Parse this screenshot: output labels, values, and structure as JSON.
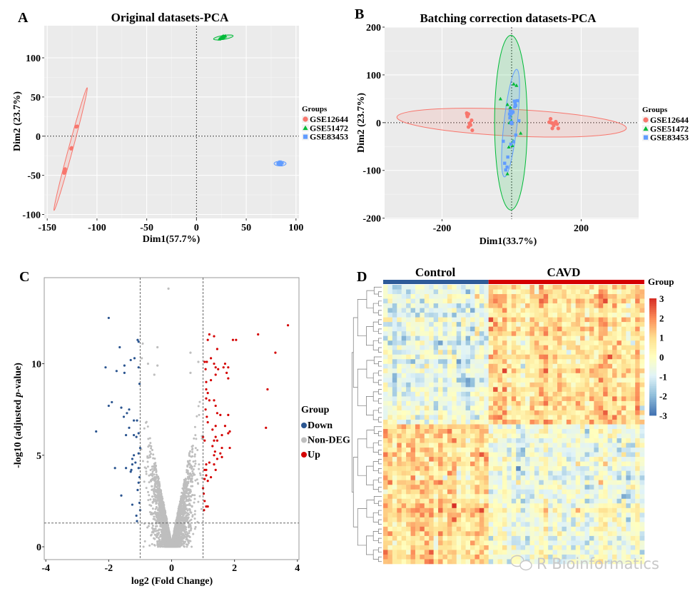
{
  "colors": {
    "GSE12644": "#F8766D",
    "GSE51472": "#00BA38",
    "GSE83453": "#619CFF",
    "down": "#2B5590",
    "nondeg": "#BEBEBE",
    "up": "#D40000",
    "control_bar": "#2E5B98",
    "cavd_bar": "#D40000",
    "panel_bg": "#EBEBEB"
  },
  "chart_data": [
    {
      "panel": "A",
      "type": "scatter",
      "title": "Original datasets-PCA",
      "xlabel": "Dim1(57.7%)",
      "ylabel": "Dim2 (23.7%)",
      "xlim": [
        -153,
        103
      ],
      "ylim": [
        -105,
        141
      ],
      "xticks": [
        -150,
        -100,
        -50,
        0,
        50,
        100
      ],
      "yticks": [
        -100,
        -50,
        0,
        50,
        100
      ],
      "grid": true,
      "legend": {
        "title": "Groups",
        "position": "right",
        "entries": [
          "GSE12644",
          "GSE51472",
          "GSE83453"
        ]
      },
      "series": [
        {
          "name": "GSE12644",
          "marker": "circle",
          "points": [
            [
              -133,
              -47
            ],
            [
              -132.5,
              -45
            ],
            [
              -132,
              -42
            ],
            [
              -126,
              -16
            ],
            [
              -125.5,
              -15
            ],
            [
              -121,
              12
            ],
            [
              -120,
              12.5
            ]
          ],
          "ellipse": {
            "cx": -126.5,
            "cy": -16.5,
            "a": 80,
            "b": 2.2,
            "angle_deg": 78
          }
        },
        {
          "name": "GSE51472",
          "marker": "triangle",
          "points": [
            [
              24,
              125
            ],
            [
              25,
              126
            ],
            [
              26,
              127
            ],
            [
              27,
              126
            ],
            [
              28,
              127
            ],
            [
              26,
              125
            ],
            [
              29,
              128
            ],
            [
              23,
              124
            ],
            [
              27,
              128
            ],
            [
              25,
              125.5
            ]
          ],
          "ellipse": {
            "cx": 27,
            "cy": 126,
            "a": 10,
            "b": 2.5,
            "angle_deg": 12
          }
        },
        {
          "name": "GSE83453",
          "marker": "square",
          "points": [
            [
              82,
              -35
            ],
            [
              83,
              -34
            ],
            [
              84,
              -36
            ],
            [
              85,
              -35
            ],
            [
              86,
              -34
            ],
            [
              84,
              -33
            ],
            [
              83,
              -36
            ],
            [
              85,
              -36.5
            ]
          ],
          "ellipse": {
            "cx": 84,
            "cy": -35,
            "a": 6,
            "b": 3,
            "angle_deg": 0
          }
        }
      ]
    },
    {
      "panel": "B",
      "type": "scatter",
      "title": "Batching correction datasets-PCA",
      "xlabel": "Dim1(33.7%)",
      "ylabel": "Dim2 (23.7%)",
      "xlim": [
        -365,
        365
      ],
      "ylim": [
        -202,
        200
      ],
      "xticks": [
        -200,
        200
      ],
      "yticks": [
        -200,
        -100,
        0,
        100,
        200
      ],
      "grid": true,
      "legend": {
        "title": "Groups",
        "position": "right",
        "entries": [
          "GSE12644",
          "GSE51472",
          "GSE83453"
        ]
      },
      "series": [
        {
          "name": "GSE12644",
          "marker": "circle",
          "points": [
            [
              -129,
              20
            ],
            [
              -128,
              17
            ],
            [
              -127,
              13
            ],
            [
              -124,
              18
            ],
            [
              -115,
              5
            ],
            [
              -121,
              -2
            ],
            [
              -118,
              -5
            ],
            [
              -124,
              -9
            ],
            [
              -113,
              -16
            ],
            [
              -120,
              -1
            ],
            [
              112,
              8
            ],
            [
              108,
              1
            ],
            [
              113,
              0
            ],
            [
              117,
              -1
            ],
            [
              121,
              -6
            ],
            [
              127,
              2
            ],
            [
              131,
              -3
            ],
            [
              117,
              -12
            ],
            [
              134,
              -12
            ],
            [
              124,
              -1
            ]
          ],
          "ellipse": {
            "cx": 0,
            "cy": 0,
            "a": 330,
            "b": 28,
            "angle_deg": -2
          }
        },
        {
          "name": "GSE51472",
          "marker": "triangle",
          "points": [
            [
              -32,
              50
            ],
            [
              -12,
              38
            ],
            [
              -4,
              32
            ],
            [
              6,
              81
            ],
            [
              14,
              78
            ],
            [
              -3,
              14
            ],
            [
              -1,
              4
            ],
            [
              -6,
              0
            ],
            [
              26,
              -22
            ],
            [
              4,
              -38
            ],
            [
              -8,
              -51
            ],
            [
              2,
              -48
            ],
            [
              -12,
              -107
            ],
            [
              0,
              -45
            ]
          ],
          "ellipse": {
            "cx": -2,
            "cy": 0,
            "a": 183,
            "b": 47,
            "angle_deg": 90
          }
        },
        {
          "name": "GSE83453",
          "marker": "square",
          "points": [
            [
              8,
              45
            ],
            [
              16,
              46
            ],
            [
              10,
              40
            ],
            [
              12,
              36
            ],
            [
              9,
              33
            ],
            [
              -4,
              25
            ],
            [
              0,
              20
            ],
            [
              4,
              22
            ],
            [
              -6,
              18
            ],
            [
              -3,
              17
            ],
            [
              2,
              23
            ],
            [
              -5,
              10
            ],
            [
              0,
              1
            ],
            [
              -2,
              -1
            ],
            [
              1,
              -2
            ],
            [
              21,
              4
            ],
            [
              12,
              -26
            ],
            [
              6,
              -40
            ],
            [
              -2,
              -45
            ],
            [
              -24,
              -39
            ],
            [
              -11,
              -72
            ],
            [
              -20,
              -85
            ],
            [
              -13,
              -93
            ],
            [
              -17,
              -99
            ]
          ],
          "ellipse": {
            "cx": -3,
            "cy": -1,
            "a": 114,
            "b": 19,
            "angle_deg": 81
          }
        }
      ]
    },
    {
      "panel": "C",
      "type": "scatter",
      "title": "",
      "xlabel": "log2 (Fold Change)",
      "ylabel_prefix": "-log10 (adjusted ",
      "ylabel_italic": "p",
      "ylabel_suffix": "-value)",
      "xlim": [
        -4.05,
        4.05
      ],
      "ylim": [
        -0.7,
        14.7
      ],
      "xticks": [
        -4,
        -2,
        0,
        2,
        4
      ],
      "yticks": [
        0,
        5,
        10
      ],
      "grid": false,
      "thresholds": {
        "log2fc": [
          -1,
          1
        ],
        "neg_log10_padj": 1.3
      },
      "legend": {
        "title": "Group",
        "position": "right",
        "entries": [
          "Down",
          "Non-DEG",
          "Up"
        ]
      },
      "series": [
        {
          "name": "Down",
          "points": [
            [
              -2.0,
              12.5
            ],
            [
              -1.65,
              10.9
            ],
            [
              -1.08,
              11.3
            ],
            [
              -1.05,
              11.2
            ],
            [
              -1.3,
              10.2
            ],
            [
              -1.18,
              10.3
            ],
            [
              -2.1,
              9.8
            ],
            [
              -1.75,
              9.6
            ],
            [
              -1.5,
              9.9
            ],
            [
              -1.5,
              9.5
            ],
            [
              -1.05,
              9.8
            ],
            [
              -1.02,
              8.9
            ],
            [
              -1.9,
              7.9
            ],
            [
              -2.0,
              7.7
            ],
            [
              -1.6,
              7.6
            ],
            [
              -1.35,
              7.5
            ],
            [
              -1.42,
              7.3
            ],
            [
              -1.52,
              7.1
            ],
            [
              -1.2,
              6.9
            ],
            [
              -1.1,
              6.9
            ],
            [
              -1.35,
              6.5
            ],
            [
              -2.4,
              6.3
            ],
            [
              -1.45,
              6.1
            ],
            [
              -1.2,
              6.1
            ],
            [
              -1.12,
              6.0
            ],
            [
              -1.05,
              6.2
            ],
            [
              -1.0,
              5.4
            ],
            [
              -1.2,
              5.0
            ],
            [
              -1.25,
              4.8
            ],
            [
              -1.05,
              5.1
            ],
            [
              -1.25,
              4.5
            ],
            [
              -1.15,
              4.6
            ],
            [
              -1.8,
              4.3
            ],
            [
              -1.45,
              4.3
            ],
            [
              -1.3,
              4.1
            ],
            [
              -1.28,
              4.2
            ],
            [
              -1.05,
              4.3
            ],
            [
              -1.02,
              3.8
            ],
            [
              -1.05,
              3.5
            ],
            [
              -1.08,
              3.1
            ],
            [
              -1.6,
              2.8
            ],
            [
              -1.25,
              2.3
            ],
            [
              -1.02,
              2.4
            ],
            [
              -1.12,
              1.7
            ],
            [
              -1.1,
              1.4
            ],
            [
              -1.0,
              2.0
            ]
          ]
        },
        {
          "name": "Non-DEG",
          "points": [
            [
              -0.45,
              10.9
            ],
            [
              -0.92,
              11.1
            ],
            [
              -0.95,
              10.3
            ],
            [
              -0.75,
              10.0
            ],
            [
              -0.55,
              9.4
            ],
            [
              -0.45,
              9.9
            ],
            [
              0.6,
              10.6
            ],
            [
              0.85,
              10.1
            ],
            [
              0.6,
              9.5
            ],
            [
              -0.1,
              14.1
            ]
          ]
        },
        {
          "name": "Up",
          "points": [
            [
              3.7,
              12.1
            ],
            [
              2.75,
              11.6
            ],
            [
              1.95,
              11.3
            ],
            [
              2.05,
              11.3
            ],
            [
              1.2,
              11.6
            ],
            [
              1.35,
              11.5
            ],
            [
              1.15,
              11.3
            ],
            [
              1.45,
              10.8
            ],
            [
              3.3,
              10.6
            ],
            [
              1.25,
              10.3
            ],
            [
              1.05,
              10.1
            ],
            [
              1.12,
              10.1
            ],
            [
              1.35,
              10.0
            ],
            [
              1.7,
              10.0
            ],
            [
              1.65,
              9.8
            ],
            [
              1.8,
              9.8
            ],
            [
              1.4,
              9.8
            ],
            [
              1.48,
              9.7
            ],
            [
              1.08,
              9.7
            ],
            [
              1.75,
              9.5
            ],
            [
              1.4,
              9.4
            ],
            [
              1.8,
              9.2
            ],
            [
              1.25,
              9.1
            ],
            [
              1.1,
              9.0
            ],
            [
              3.05,
              8.6
            ],
            [
              1.1,
              8.6
            ],
            [
              1.15,
              8.4
            ],
            [
              1.1,
              8.1
            ],
            [
              1.2,
              8.0
            ],
            [
              1.35,
              8.0
            ],
            [
              1.4,
              7.7
            ],
            [
              1.08,
              7.5
            ],
            [
              1.45,
              7.3
            ],
            [
              1.55,
              7.2
            ],
            [
              1.8,
              7.2
            ],
            [
              1.12,
              7.1
            ],
            [
              1.15,
              6.8
            ],
            [
              1.4,
              6.6
            ],
            [
              1.7,
              6.6
            ],
            [
              3.0,
              6.5
            ],
            [
              1.3,
              6.4
            ],
            [
              1.85,
              6.3
            ],
            [
              1.8,
              6.2
            ],
            [
              1.6,
              6.1
            ],
            [
              1.4,
              6.0
            ],
            [
              1.35,
              5.8
            ],
            [
              1.45,
              5.8
            ],
            [
              1.0,
              6.0
            ],
            [
              1.05,
              5.8
            ],
            [
              1.3,
              5.5
            ],
            [
              1.6,
              5.4
            ],
            [
              1.85,
              5.4
            ],
            [
              1.38,
              5.2
            ],
            [
              1.55,
              5.1
            ],
            [
              1.35,
              5.0
            ],
            [
              1.6,
              4.9
            ],
            [
              1.45,
              4.8
            ],
            [
              1.2,
              4.6
            ],
            [
              1.1,
              4.5
            ],
            [
              1.35,
              4.5
            ],
            [
              1.05,
              4.2
            ],
            [
              1.1,
              4.2
            ],
            [
              1.4,
              4.2
            ],
            [
              1.1,
              3.9
            ],
            [
              1.25,
              3.8
            ],
            [
              1.05,
              3.7
            ],
            [
              1.15,
              3.6
            ],
            [
              1.0,
              3.2
            ],
            [
              1.02,
              2.9
            ],
            [
              1.05,
              2.5
            ],
            [
              1.1,
              2.2
            ],
            [
              1.15,
              2.2
            ],
            [
              1.03,
              2.0
            ]
          ]
        }
      ]
    },
    {
      "panel": "D",
      "type": "heatmap",
      "title": "",
      "column_groups": [
        {
          "name": "Control",
          "n_columns": 23
        },
        {
          "name": "CAVD",
          "n_columns": 34
        }
      ],
      "n_rows": 60,
      "row_clusters": [
        {
          "rows": 30,
          "pattern": "low in Control, high in CAVD"
        },
        {
          "rows": 30,
          "pattern": "high in Control, low in CAVD"
        }
      ],
      "annotation_label": "Group",
      "color_scale": {
        "min": -3,
        "max": 3,
        "ticks": [
          3,
          2,
          1,
          0,
          -1,
          -2,
          -3
        ],
        "colors": [
          "#4575B4",
          "#91BFDB",
          "#E0F3F8",
          "#FFFFBF",
          "#FEE090",
          "#FC8D59",
          "#D73027"
        ]
      },
      "row_dendrogram": true
    }
  ],
  "panel_labels": [
    "A",
    "B",
    "C",
    "D"
  ],
  "watermark": "R Bioinformatics"
}
